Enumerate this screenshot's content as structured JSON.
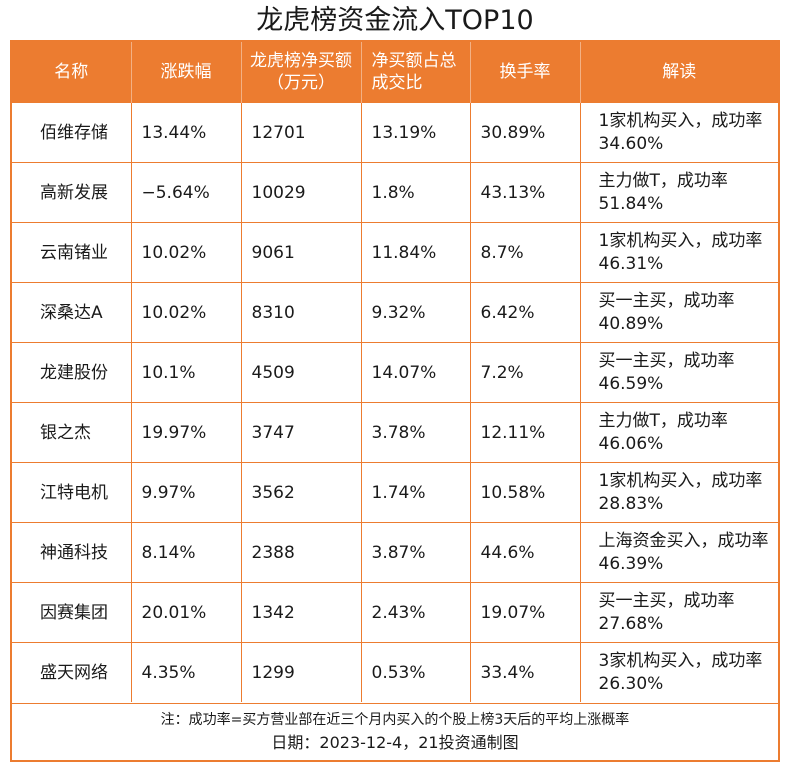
{
  "title": "龙虎榜资金流入TOP10",
  "headers": {
    "name": "名称",
    "change": "涨跌幅",
    "net_buy": "龙虎榜净买额（万元）",
    "net_ratio": "净买额占总成交比",
    "turnover": "换手率",
    "note": "解读"
  },
  "rows": [
    {
      "name": "佰维存储",
      "change": "13.44%",
      "net_buy": "12701",
      "net_ratio": "13.19%",
      "turnover": "30.89%",
      "note": "1家机构买入，成功率34.60%"
    },
    {
      "name": "高新发展",
      "change": "−5.64%",
      "net_buy": "10029",
      "net_ratio": "1.8%",
      "turnover": "43.13%",
      "note": "主力做T，成功率51.84%"
    },
    {
      "name": "云南锗业",
      "change": "10.02%",
      "net_buy": "9061",
      "net_ratio": "11.84%",
      "turnover": "8.7%",
      "note": "1家机构买入，成功率46.31%"
    },
    {
      "name": "深桑达A",
      "change": "10.02%",
      "net_buy": "8310",
      "net_ratio": "9.32%",
      "turnover": "6.42%",
      "note": "买一主买，成功率40.89%"
    },
    {
      "name": "龙建股份",
      "change": "10.1%",
      "net_buy": "4509",
      "net_ratio": "14.07%",
      "turnover": "7.2%",
      "note": "买一主买，成功率46.59%"
    },
    {
      "name": "银之杰",
      "change": "19.97%",
      "net_buy": "3747",
      "net_ratio": "3.78%",
      "turnover": "12.11%",
      "note": "主力做T，成功率46.06%"
    },
    {
      "name": "江特电机",
      "change": "9.97%",
      "net_buy": "3562",
      "net_ratio": "1.74%",
      "turnover": "10.58%",
      "note": "1家机构买入，成功率28.83%"
    },
    {
      "name": "神通科技",
      "change": "8.14%",
      "net_buy": "2388",
      "net_ratio": "3.87%",
      "turnover": "44.6%",
      "note": "上海资金买入，成功率46.39%"
    },
    {
      "name": "因赛集团",
      "change": "20.01%",
      "net_buy": "1342",
      "net_ratio": "2.43%",
      "turnover": "19.07%",
      "note": "买一主买，成功率27.68%"
    },
    {
      "name": "盛天网络",
      "change": "4.35%",
      "net_buy": "1299",
      "net_ratio": "0.53%",
      "turnover": "33.4%",
      "note": "3家机构买入，成功率26.30%"
    }
  ],
  "footer": {
    "note": "注：成功率=买方营业部在近三个月内买入的个股上榜3天后的平均上涨概率",
    "date": "日期：2023-12-4，21投资通制图"
  },
  "colors": {
    "accent": "#ec7c30",
    "header_text": "#ffffff"
  }
}
